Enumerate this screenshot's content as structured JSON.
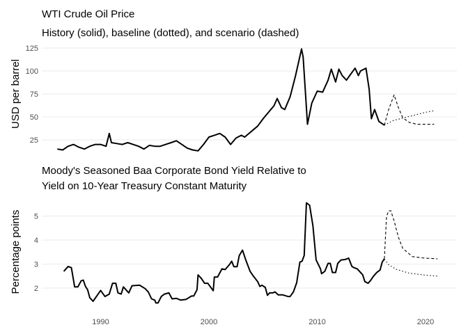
{
  "chart_data": [
    {
      "type": "line",
      "title": "WTI Crude Oil Price",
      "subtitle": "History (solid), baseline (dotted), and scenario (dashed)",
      "xlabel": "",
      "ylabel": "USD per barrel",
      "yticks": [
        25,
        50,
        75,
        100,
        125
      ],
      "ylim": [
        10,
        128
      ],
      "grid": "horizontal",
      "series": [
        {
          "style": "solid",
          "x": [
            1986.0,
            1986.5,
            1987.0,
            1987.5,
            1988.0,
            1988.5,
            1989.0,
            1989.5,
            1990.0,
            1990.5,
            1990.8,
            1991.0,
            1991.5,
            1992.0,
            1992.5,
            1993.0,
            1993.5,
            1994.0,
            1994.5,
            1995.0,
            1995.5,
            1996.0,
            1996.5,
            1997.0,
            1997.5,
            1998.0,
            1998.5,
            1999.0,
            1999.5,
            2000.0,
            2000.5,
            2001.0,
            2001.5,
            2002.0,
            2002.5,
            2003.0,
            2003.3,
            2003.5,
            2004.0,
            2004.5,
            2005.0,
            2005.5,
            2006.0,
            2006.3,
            2006.7,
            2007.0,
            2007.5,
            2008.0,
            2008.55,
            2008.7,
            2009.1,
            2009.5,
            2010.0,
            2010.5,
            2011.0,
            2011.3,
            2011.7,
            2012.0,
            2012.3,
            2012.7,
            2013.0,
            2013.5,
            2013.8,
            2014.0,
            2014.5,
            2014.8,
            2015.0,
            2015.3,
            2015.7,
            2016.2
          ],
          "values": [
            15,
            14,
            18,
            20,
            17,
            15,
            18,
            20,
            20,
            18,
            32,
            22,
            21,
            20,
            22,
            20,
            18,
            15,
            19,
            18,
            18,
            20,
            22,
            24,
            20,
            16,
            14,
            13,
            20,
            28,
            30,
            32,
            28,
            20,
            27,
            30,
            28,
            30,
            35,
            40,
            48,
            55,
            62,
            70,
            60,
            58,
            72,
            95,
            124,
            115,
            42,
            65,
            78,
            77,
            90,
            102,
            88,
            102,
            95,
            90,
            95,
            103,
            95,
            100,
            103,
            80,
            48,
            58,
            45,
            41
          ]
        },
        {
          "style": "dotted",
          "x": [
            2016.2,
            2017.0,
            2018.0,
            2019.0,
            2020.0,
            2020.9
          ],
          "values": [
            41,
            46,
            49,
            52,
            55,
            57
          ]
        },
        {
          "style": "dashed",
          "x": [
            2016.2,
            2016.6,
            2017.1,
            2017.5,
            2017.9,
            2018.5,
            2019.2,
            2020.8
          ],
          "values": [
            41,
            58,
            74,
            60,
            49,
            44,
            42,
            42
          ]
        }
      ]
    },
    {
      "type": "line",
      "title": "Moody's Seasoned Baa Corporate Bond Yield Relative to",
      "title_line2": "Yield on 10-Year Treasury Constant Maturity",
      "xlabel": "",
      "ylabel": "Percentage points",
      "xticks": [
        1990,
        2000,
        2010,
        2020
      ],
      "yticks": [
        2,
        3,
        4,
        5
      ],
      "ylim": [
        1.3,
        5.7
      ],
      "grid": "horizontal",
      "series": [
        {
          "style": "solid",
          "x": [
            1986.6,
            1987.0,
            1987.3,
            1987.6,
            1987.9,
            1988.2,
            1988.4,
            1988.6,
            1988.8,
            1989.0,
            1989.3,
            1990.0,
            1990.4,
            1990.8,
            1991.1,
            1991.4,
            1991.6,
            1991.9,
            1992.1,
            1992.6,
            1992.9,
            1993.6,
            1994.1,
            1994.4,
            1994.7,
            1995.0,
            1995.1,
            1995.3,
            1995.6,
            1995.9,
            1996.3,
            1996.6,
            1997.0,
            1997.4,
            1997.9,
            1998.4,
            1998.6,
            1998.9,
            1999.0,
            1999.3,
            1999.6,
            1999.9,
            2000.1,
            2000.4,
            2000.5,
            2000.8,
            2001.2,
            2001.5,
            2001.9,
            2002.1,
            2002.3,
            2002.6,
            2002.8,
            2003.1,
            2003.4,
            2003.8,
            2004.1,
            2004.5,
            2004.7,
            2004.9,
            2005.2,
            2005.4,
            2005.6,
            2005.9,
            2006.1,
            2006.4,
            2006.8,
            2007.3,
            2007.5,
            2007.8,
            2008.1,
            2008.4,
            2008.6,
            2008.8,
            2009.0,
            2009.3,
            2009.6,
            2009.9,
            2010.3,
            2010.4,
            2010.7,
            2011.0,
            2011.2,
            2011.4,
            2011.7,
            2011.9,
            2012.2,
            2012.6,
            2012.9,
            2013.2,
            2013.4,
            2013.7,
            2014.0,
            2014.2,
            2014.4,
            2014.7,
            2014.9,
            2015.2,
            2015.5,
            2015.8,
            2016.0,
            2016.2
          ],
          "values": [
            2.7,
            2.9,
            2.85,
            2.05,
            2.05,
            2.3,
            2.33,
            2.07,
            1.93,
            1.6,
            1.45,
            1.9,
            1.65,
            1.75,
            2.2,
            2.2,
            1.8,
            1.75,
            2.05,
            1.8,
            2.1,
            2.12,
            1.98,
            1.84,
            1.55,
            1.5,
            1.38,
            1.38,
            1.65,
            1.75,
            1.8,
            1.55,
            1.57,
            1.5,
            1.53,
            1.67,
            1.67,
            1.93,
            2.55,
            2.4,
            2.2,
            2.2,
            2.07,
            1.89,
            2.46,
            2.46,
            2.8,
            2.77,
            2.98,
            3.12,
            2.89,
            2.89,
            3.35,
            3.58,
            3.17,
            2.7,
            2.5,
            2.27,
            2.07,
            2.12,
            2.03,
            1.7,
            1.8,
            1.8,
            1.84,
            1.72,
            1.72,
            1.65,
            1.65,
            1.84,
            2.22,
            3.08,
            3.12,
            3.36,
            5.55,
            5.45,
            4.6,
            3.17,
            2.8,
            2.6,
            2.7,
            3.03,
            3.03,
            2.65,
            2.65,
            3.03,
            3.17,
            3.19,
            3.25,
            2.9,
            2.85,
            2.8,
            2.65,
            2.55,
            2.27,
            2.2,
            2.3,
            2.5,
            2.65,
            2.75,
            3.08,
            3.22
          ]
        },
        {
          "style": "dotted",
          "x": [
            2016.2,
            2016.6,
            2017.3,
            2018.5,
            2020.0,
            2021.1
          ],
          "values": [
            3.2,
            2.97,
            2.78,
            2.62,
            2.54,
            2.5
          ]
        },
        {
          "style": "dashed",
          "x": [
            2016.2,
            2016.3,
            2016.4,
            2016.6,
            2016.8,
            2017.1,
            2017.5,
            2017.9,
            2018.8,
            2019.9,
            2021.1
          ],
          "values": [
            3.22,
            4.12,
            4.98,
            5.22,
            5.22,
            4.8,
            4.12,
            3.65,
            3.31,
            3.25,
            3.22
          ]
        }
      ]
    }
  ]
}
